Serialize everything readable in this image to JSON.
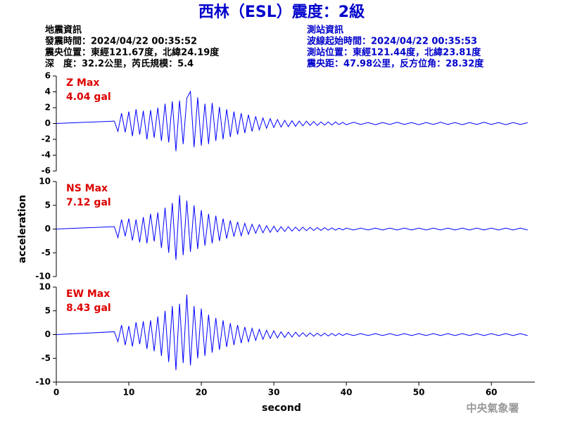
{
  "header": {
    "title": "西林（ESL）震度：2級",
    "event_info": [
      "地震資訊",
      "發震時間：2024/04/22 00:35:52",
      "震央位置：東經121.67度，北緯24.19度",
      "深　度：32.2公里，芮氏規模：5.4"
    ],
    "station_info": [
      "測站資訊",
      "波線起始時間：2024/04/22 00:35:53",
      "測站位置：東經121.44度，北緯23.81度",
      "震央距：47.98公里，反方位角：28.32度"
    ]
  },
  "footer": {
    "watermark": "中央氣象署"
  },
  "chart_data": [
    {
      "type": "line",
      "annotation": [
        "Z Max",
        "4.04 gal"
      ],
      "annotation_color": "#dd0000",
      "xlim": [
        0,
        66
      ],
      "ylim": [
        -6,
        6
      ],
      "yticks": [
        -6,
        -4,
        -2,
        0,
        2,
        4,
        6
      ],
      "x": [
        0,
        8,
        8.5,
        9,
        9.5,
        10,
        10.5,
        11,
        11.5,
        12,
        12.5,
        13,
        13.5,
        14,
        14.5,
        15,
        15.5,
        16,
        16.5,
        17,
        17.5,
        18,
        18.5,
        19,
        19.5,
        20,
        20.5,
        21,
        21.5,
        22,
        22.5,
        23,
        23.5,
        24,
        24.5,
        25,
        25.5,
        26,
        26.5,
        27,
        27.5,
        28,
        28.5,
        29,
        29.5,
        30,
        30.5,
        31,
        31.5,
        32,
        32.5,
        33,
        33.5,
        34,
        34.5,
        35,
        35.5,
        36,
        36.5,
        37,
        37.5,
        38,
        38.5,
        39,
        39.5,
        40,
        41,
        42,
        43,
        44,
        45,
        46,
        47,
        48,
        49,
        50,
        51,
        52,
        53,
        54,
        55,
        56,
        57,
        58,
        59,
        60,
        61,
        62,
        63,
        64,
        65
      ],
      "series": [
        {
          "name": "Z",
          "color": "#0000ff",
          "values": [
            0,
            0.3,
            -1.0,
            1.3,
            -1.1,
            1.5,
            -1.6,
            1.8,
            -1.4,
            1.6,
            -2.0,
            1.7,
            -1.8,
            2.0,
            -2.2,
            2.5,
            -2.4,
            2.8,
            -3.5,
            2.9,
            -2.6,
            3.2,
            4.04,
            -3.0,
            3.3,
            -2.8,
            2.5,
            -2.6,
            2.6,
            -2.2,
            2.1,
            -2.0,
            1.8,
            -1.7,
            1.5,
            -1.4,
            1.3,
            -1.2,
            1.1,
            -1.0,
            0.9,
            -0.8,
            0.7,
            -0.6,
            0.6,
            -0.5,
            0.5,
            -0.45,
            0.4,
            -0.4,
            0.35,
            -0.35,
            0.3,
            -0.3,
            0.3,
            -0.25,
            0.25,
            -0.25,
            0.2,
            -0.2,
            0.2,
            -0.2,
            0.2,
            -0.15,
            0.15,
            -0.15,
            0.15,
            -0.12,
            0.12,
            -0.15,
            0.12,
            -0.12,
            0.15,
            -0.12,
            0.12,
            -0.15,
            0.12,
            -0.12,
            0.15,
            -0.12,
            0.12,
            -0.15,
            0.12,
            -0.12,
            0.15,
            -0.12,
            0.12,
            -0.15,
            0.12,
            -0.12,
            0.1
          ]
        }
      ]
    },
    {
      "type": "line",
      "annotation": [
        "NS Max",
        "7.12 gal"
      ],
      "annotation_color": "#dd0000",
      "ylabel": "acceleration",
      "xlim": [
        0,
        66
      ],
      "ylim": [
        -10,
        10
      ],
      "yticks": [
        -10,
        -5,
        0,
        5,
        10
      ],
      "x": [
        0,
        8,
        8.5,
        9,
        9.5,
        10,
        10.5,
        11,
        11.5,
        12,
        12.5,
        13,
        13.5,
        14,
        14.5,
        15,
        15.5,
        16,
        16.5,
        17,
        17.5,
        18,
        18.5,
        19,
        19.5,
        20,
        20.5,
        21,
        21.5,
        22,
        22.5,
        23,
        23.5,
        24,
        24.5,
        25,
        25.5,
        26,
        26.5,
        27,
        27.5,
        28,
        28.5,
        29,
        29.5,
        30,
        30.5,
        31,
        31.5,
        32,
        32.5,
        33,
        33.5,
        34,
        34.5,
        35,
        35.5,
        36,
        36.5,
        37,
        37.5,
        38,
        38.5,
        39,
        39.5,
        40,
        41,
        42,
        43,
        44,
        45,
        46,
        47,
        48,
        49,
        50,
        51,
        52,
        53,
        54,
        55,
        56,
        57,
        58,
        59,
        60,
        61,
        62,
        63,
        64,
        65
      ],
      "series": [
        {
          "name": "NS",
          "color": "#0000ff",
          "values": [
            0,
            0.5,
            -1.8,
            2.0,
            -1.5,
            2.2,
            -2.4,
            2.0,
            -2.8,
            2.5,
            -3.0,
            3.2,
            -2.6,
            3.5,
            -4.0,
            4.5,
            -5.0,
            5.5,
            -6.5,
            7.12,
            -5.5,
            6.0,
            -4.8,
            5.0,
            -4.2,
            4.0,
            -3.5,
            3.2,
            -3.0,
            2.8,
            -2.5,
            2.2,
            -2.0,
            1.8,
            -1.6,
            1.5,
            -1.4,
            1.2,
            -1.1,
            1.0,
            -0.9,
            0.9,
            -0.8,
            0.7,
            -0.7,
            0.6,
            -0.6,
            0.5,
            -0.5,
            0.5,
            -0.45,
            0.4,
            -0.4,
            0.4,
            -0.35,
            0.35,
            -0.3,
            0.3,
            -0.3,
            0.3,
            -0.25,
            0.25,
            -0.25,
            0.2,
            -0.2,
            0.2,
            -0.2,
            0.2,
            -0.2,
            0.2,
            -0.2,
            0.2,
            -0.2,
            0.2,
            -0.2,
            0.2,
            -0.2,
            0.2,
            -0.2,
            0.2,
            -0.2,
            0.2,
            -0.2,
            0.2,
            -0.2,
            0.2,
            -0.2,
            0.2,
            -0.2,
            0.2,
            -0.2
          ]
        }
      ]
    },
    {
      "type": "line",
      "annotation": [
        "EW Max",
        "8.43 gal"
      ],
      "annotation_color": "#dd0000",
      "xlabel": "second",
      "xlim": [
        0,
        66
      ],
      "xticks": [
        0,
        10,
        20,
        30,
        40,
        50,
        60
      ],
      "ylim": [
        -10,
        10
      ],
      "yticks": [
        -10,
        -5,
        0,
        5,
        10
      ],
      "x": [
        0,
        8,
        8.5,
        9,
        9.5,
        10,
        10.5,
        11,
        11.5,
        12,
        12.5,
        13,
        13.5,
        14,
        14.5,
        15,
        15.5,
        16,
        16.5,
        17,
        17.5,
        18,
        18.5,
        19,
        19.5,
        20,
        20.5,
        21,
        21.5,
        22,
        22.5,
        23,
        23.5,
        24,
        24.5,
        25,
        25.5,
        26,
        26.5,
        27,
        27.5,
        28,
        28.5,
        29,
        29.5,
        30,
        30.5,
        31,
        31.5,
        32,
        32.5,
        33,
        33.5,
        34,
        34.5,
        35,
        35.5,
        36,
        36.5,
        37,
        37.5,
        38,
        38.5,
        39,
        39.5,
        40,
        41,
        42,
        43,
        44,
        45,
        46,
        47,
        48,
        49,
        50,
        51,
        52,
        53,
        54,
        55,
        56,
        57,
        58,
        59,
        60,
        61,
        62,
        63,
        64,
        65
      ],
      "series": [
        {
          "name": "EW",
          "color": "#0000ff",
          "values": [
            0,
            0.6,
            -1.5,
            2.0,
            -2.2,
            1.8,
            -2.5,
            2.6,
            -2.0,
            2.8,
            -3.0,
            3.0,
            -3.5,
            3.8,
            -4.5,
            5.0,
            -5.8,
            6.0,
            -7.5,
            6.5,
            -6.0,
            8.43,
            -6.5,
            6.0,
            -5.0,
            5.5,
            -4.5,
            4.2,
            -3.8,
            3.5,
            -3.2,
            3.0,
            -2.6,
            2.4,
            -2.2,
            2.0,
            -1.8,
            1.6,
            -1.5,
            1.3,
            -1.2,
            1.1,
            -1.0,
            0.9,
            -0.8,
            0.8,
            -0.7,
            0.6,
            -0.6,
            0.5,
            -0.5,
            0.5,
            -0.4,
            0.4,
            -0.4,
            0.35,
            -0.35,
            0.3,
            -0.3,
            0.3,
            -0.3,
            0.25,
            -0.25,
            0.25,
            -0.2,
            0.2,
            -0.2,
            0.2,
            -0.2,
            0.2,
            -0.2,
            0.2,
            -0.2,
            0.2,
            -0.2,
            0.2,
            -0.2,
            0.2,
            -0.2,
            0.2,
            -0.2,
            0.2,
            -0.2,
            0.2,
            -0.2,
            0.2,
            -0.2,
            0.2,
            -0.2,
            0.2,
            -0.2
          ]
        }
      ]
    }
  ]
}
